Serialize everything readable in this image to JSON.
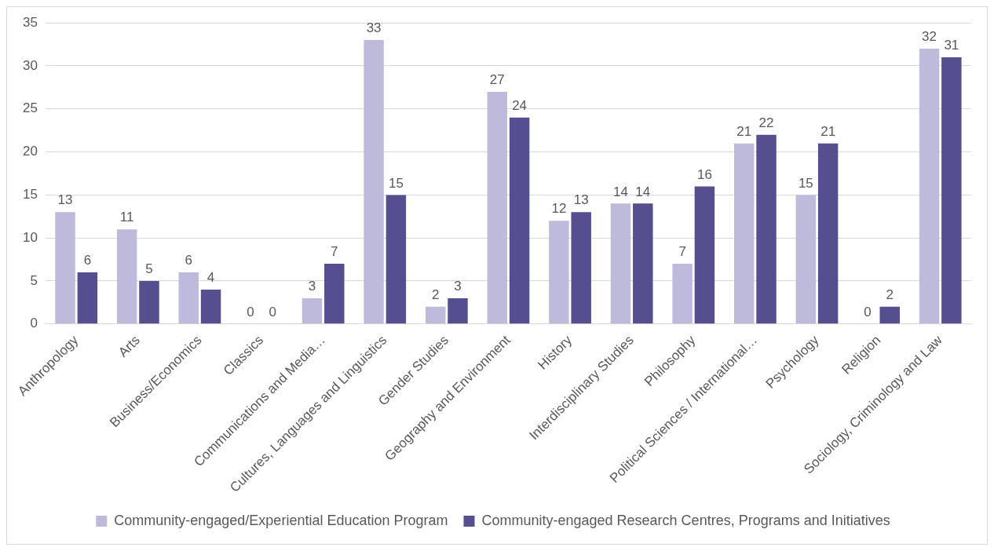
{
  "chart_data": {
    "type": "bar",
    "categories": [
      "Anthropology",
      "Arts",
      "Business/Economics",
      "Classics",
      "Communications and Media…",
      "Cultures, Languages and Linguistics",
      "Gender Studies",
      "Geography and Environment",
      "History",
      "Interdisciplinary Studies",
      "Philosophy",
      "Political Sciences / International…",
      "Psychology",
      "Religion",
      "Sociology, Criminology and Law"
    ],
    "series": [
      {
        "name": "Community-engaged/Experiential Education Program",
        "color": "#bdbadc",
        "values": [
          13,
          11,
          6,
          0,
          3,
          33,
          2,
          27,
          12,
          14,
          7,
          21,
          15,
          0,
          32
        ]
      },
      {
        "name": "Community-engaged Research Centres, Programs and Initiatives",
        "color": "#554f8f",
        "values": [
          6,
          5,
          4,
          0,
          7,
          15,
          3,
          24,
          13,
          14,
          16,
          22,
          21,
          2,
          31
        ]
      }
    ],
    "ylim": [
      0,
      35
    ],
    "yticks": [
      0,
      5,
      10,
      15,
      20,
      25,
      30,
      35
    ],
    "grid": "y",
    "legend": "bottom",
    "data_labels": true
  }
}
